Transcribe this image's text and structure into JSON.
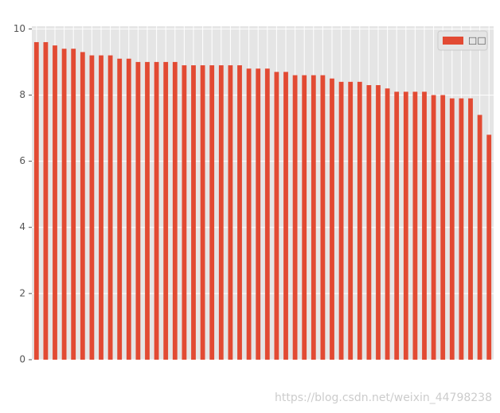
{
  "chart_data": {
    "type": "bar",
    "categories": [
      null,
      null,
      null,
      null,
      null,
      null,
      null,
      null,
      null,
      null,
      null,
      null,
      null,
      null,
      null,
      null,
      null,
      null,
      null,
      null,
      null,
      null,
      null,
      null,
      null,
      null,
      null,
      null,
      null,
      null,
      null,
      null,
      null,
      null,
      null,
      null,
      null,
      null,
      null,
      null,
      null,
      null,
      null,
      null,
      null,
      null,
      null,
      null,
      null,
      null
    ],
    "series": [
      {
        "name": "□□",
        "color": "#e24a33",
        "values": [
          9.6,
          9.6,
          9.5,
          9.4,
          9.4,
          9.3,
          9.2,
          9.2,
          9.2,
          9.1,
          9.1,
          9.0,
          9.0,
          9.0,
          9.0,
          9.0,
          8.9,
          8.9,
          8.9,
          8.9,
          8.9,
          8.9,
          8.9,
          8.8,
          8.8,
          8.8,
          8.7,
          8.7,
          8.6,
          8.6,
          8.6,
          8.6,
          8.5,
          8.4,
          8.4,
          8.4,
          8.3,
          8.3,
          8.2,
          8.1,
          8.1,
          8.1,
          8.1,
          8.0,
          8.0,
          7.9,
          7.9,
          7.9,
          7.4,
          6.8
        ]
      }
    ],
    "ylim": [
      0,
      10.08
    ],
    "yticks": [
      0,
      2,
      4,
      6,
      8,
      10
    ],
    "grid": true,
    "legend": "upper right",
    "watermark": "https://blog.csdn.net/weixin_44798238"
  }
}
